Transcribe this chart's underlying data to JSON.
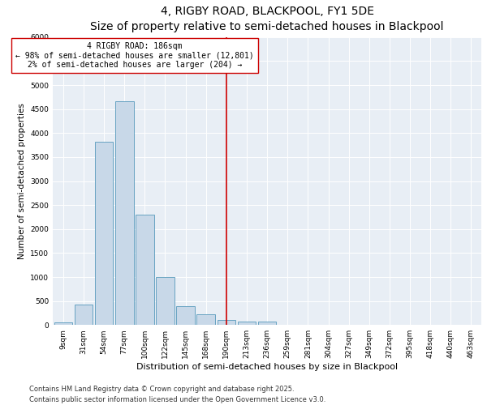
{
  "title": "4, RIGBY ROAD, BLACKPOOL, FY1 5DE",
  "subtitle": "Size of property relative to semi-detached houses in Blackpool",
  "xlabel": "Distribution of semi-detached houses by size in Blackpool",
  "ylabel": "Number of semi-detached properties",
  "categories": [
    "9sqm",
    "31sqm",
    "54sqm",
    "77sqm",
    "100sqm",
    "122sqm",
    "145sqm",
    "168sqm",
    "190sqm",
    "213sqm",
    "236sqm",
    "259sqm",
    "281sqm",
    "304sqm",
    "327sqm",
    "349sqm",
    "372sqm",
    "395sqm",
    "418sqm",
    "440sqm",
    "463sqm"
  ],
  "values": [
    50,
    430,
    3820,
    4670,
    2300,
    1000,
    400,
    220,
    100,
    80,
    80,
    0,
    0,
    0,
    0,
    0,
    0,
    0,
    0,
    0,
    0
  ],
  "bar_color": "#c8d8e8",
  "bar_edge_color": "#5599bb",
  "vline_x": 8.0,
  "vline_color": "#cc0000",
  "annotation_text": "4 RIGBY ROAD: 186sqm\n← 98% of semi-detached houses are smaller (12,801)\n2% of semi-detached houses are larger (204) →",
  "annotation_box_color": "#ffffff",
  "annotation_box_edge": "#cc0000",
  "annotation_fontsize": 7.0,
  "ylim": [
    0,
    6000
  ],
  "yticks": [
    0,
    500,
    1000,
    1500,
    2000,
    2500,
    3000,
    3500,
    4000,
    4500,
    5000,
    5500,
    6000
  ],
  "background_color": "#e8eef5",
  "footer1": "Contains HM Land Registry data © Crown copyright and database right 2025.",
  "footer2": "Contains public sector information licensed under the Open Government Licence v3.0.",
  "title_fontsize": 10,
  "subtitle_fontsize": 8.5,
  "xlabel_fontsize": 8,
  "ylabel_fontsize": 7.5,
  "tick_fontsize": 6.5,
  "footer_fontsize": 6.0
}
